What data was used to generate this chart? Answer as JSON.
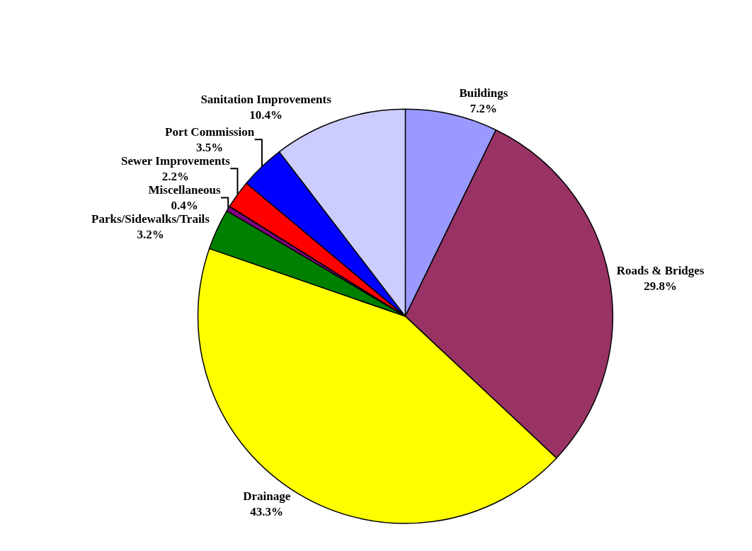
{
  "chart_data": {
    "type": "pie",
    "categories": [
      "Buildings",
      "Roads & Bridges",
      "Drainage",
      "Parks/Sidewalks/Trails",
      "Miscellaneous",
      "Sewer Improvements",
      "Port Commission",
      "Sanitation Improvements"
    ],
    "values": [
      7.2,
      29.8,
      43.3,
      3.2,
      0.4,
      2.2,
      3.5,
      10.4
    ],
    "value_labels": [
      "7.2%",
      "29.8%",
      "43.3%",
      "3.2%",
      "0.4%",
      "2.2%",
      "3.5%",
      "10.4%"
    ],
    "colors": [
      "#9999ff",
      "#993366",
      "#ffff00",
      "#008000",
      "#800080",
      "#ff0000",
      "#0000ff",
      "#ccccff"
    ],
    "legend": false
  }
}
